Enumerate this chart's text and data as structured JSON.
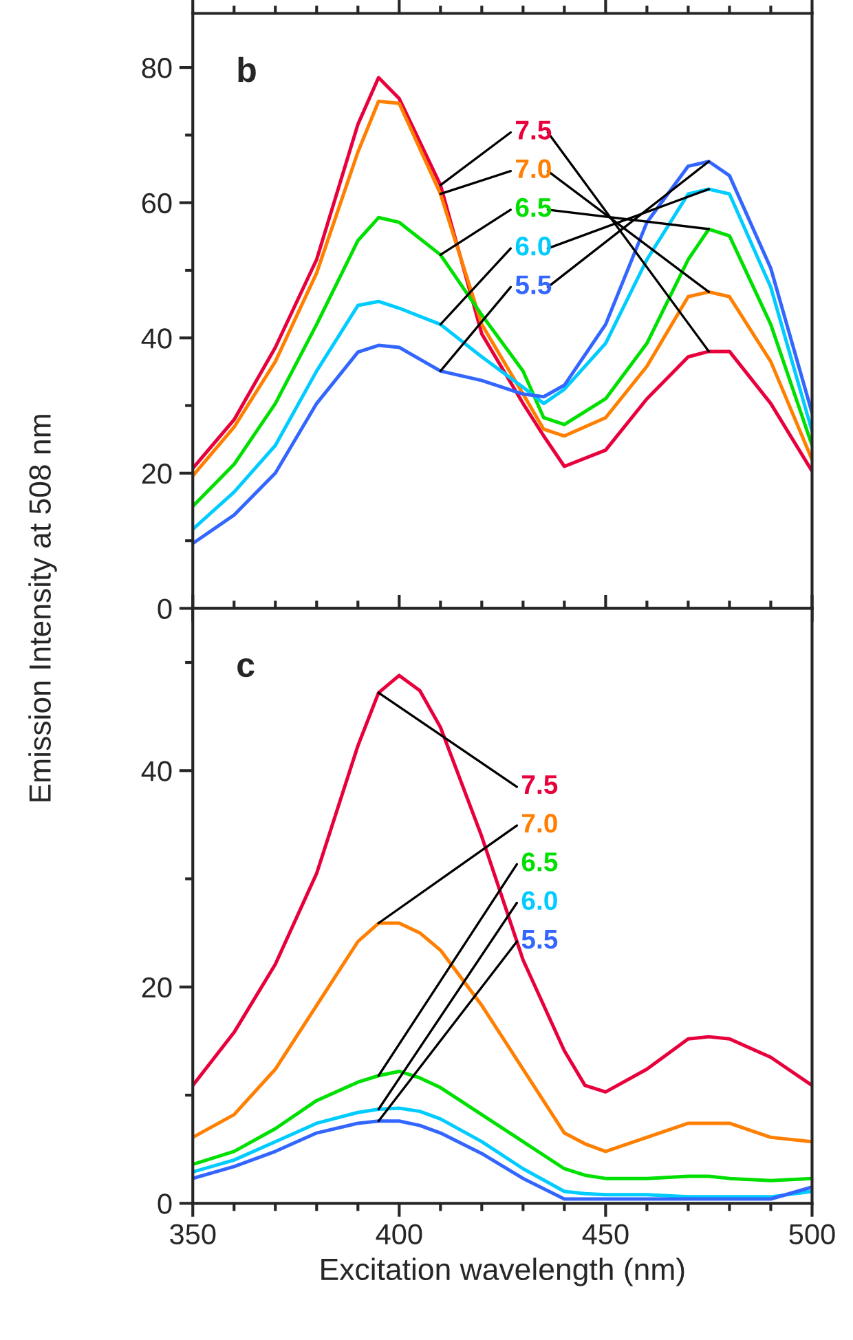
{
  "chart_data": [
    {
      "type": "line",
      "ylabel": "Emission Intensity at 508 nm",
      "annotations": [
        "b"
      ],
      "tick_labels": "y",
      "xlim": [
        350,
        500
      ],
      "xticks": [
        350,
        400,
        450,
        500
      ],
      "ylim": [
        0,
        88
      ],
      "yticks": [
        0,
        20,
        40,
        60,
        80
      ],
      "grid": false,
      "legend": false,
      "x": [
        350,
        360,
        370,
        380,
        390,
        395,
        400,
        410,
        420,
        430,
        435,
        440,
        450,
        460,
        470,
        475,
        480,
        490,
        500
      ],
      "series": [
        {
          "name": "7.5",
          "color": "#e8003c",
          "values": [
            20.7,
            27.9,
            38.6,
            51.6,
            71.6,
            78.5,
            75.4,
            62.6,
            40.6,
            30.3,
            25.5,
            21,
            23.4,
            31,
            37.2,
            38,
            38,
            30.3,
            20.3
          ]
        },
        {
          "name": "7.0",
          "color": "#ff7f00",
          "values": [
            19.6,
            26.8,
            36.5,
            49.6,
            67.5,
            75,
            74.7,
            61.3,
            42,
            31.7,
            26.5,
            25.5,
            28.2,
            35.8,
            46.1,
            46.8,
            46.1,
            36.5,
            22
          ]
        },
        {
          "name": "6.5",
          "color": "#00e000",
          "values": [
            15.1,
            21.3,
            30.3,
            42,
            54.4,
            57.8,
            57.1,
            52.3,
            43.4,
            35.1,
            28.2,
            27.2,
            31,
            39.2,
            51.6,
            56.1,
            55.1,
            42,
            24.1
          ]
        },
        {
          "name": "6.0",
          "color": "#00ccff",
          "values": [
            11.7,
            17.2,
            24.1,
            35.1,
            44.8,
            45.4,
            44.4,
            42,
            37.2,
            32.7,
            30.3,
            32.4,
            39.2,
            51.6,
            61.3,
            62,
            61.3,
            47.5,
            26.2
          ]
        },
        {
          "name": "5.5",
          "color": "#3366ff",
          "values": [
            9.6,
            13.8,
            20,
            30.3,
            37.9,
            38.9,
            38.6,
            35.1,
            33.7,
            31.7,
            31.3,
            33,
            42,
            57.1,
            65.4,
            66.1,
            64,
            50.3,
            28.9
          ]
        }
      ]
    },
    {
      "type": "line",
      "xlabel": "Excitation wavelength (nm)",
      "annotations": [
        "c"
      ],
      "xlim": [
        350,
        500
      ],
      "xticks": [
        350,
        400,
        450,
        500
      ],
      "ylim": [
        0,
        55
      ],
      "yticks": [
        0,
        20,
        40
      ],
      "grid": false,
      "legend": false,
      "x": [
        350,
        360,
        370,
        380,
        390,
        395,
        400,
        405,
        410,
        420,
        430,
        440,
        445,
        450,
        460,
        470,
        475,
        480,
        490,
        500
      ],
      "series": [
        {
          "name": "7.5",
          "color": "#e8003c",
          "values": [
            10.9,
            15.8,
            22.1,
            30.5,
            42.3,
            47.2,
            48.8,
            47.4,
            44,
            33.9,
            22.5,
            14.1,
            10.9,
            10.3,
            12.4,
            15.2,
            15.4,
            15.2,
            13.5,
            10.9
          ]
        },
        {
          "name": "7.0",
          "color": "#ff7f00",
          "values": [
            6.1,
            8.2,
            12.4,
            18.3,
            24.2,
            25.9,
            25.9,
            25,
            23.4,
            18.3,
            12.4,
            6.5,
            5.5,
            4.8,
            6.1,
            7.4,
            7.4,
            7.4,
            6.1,
            5.7
          ]
        },
        {
          "name": "6.5",
          "color": "#00e000",
          "values": [
            3.6,
            4.8,
            6.9,
            9.5,
            11.2,
            11.8,
            12.2,
            11.6,
            10.7,
            8.2,
            5.7,
            3.2,
            2.6,
            2.3,
            2.3,
            2.5,
            2.5,
            2.3,
            2.1,
            2.3
          ]
        },
        {
          "name": "6.0",
          "color": "#00ccff",
          "values": [
            2.9,
            4,
            5.7,
            7.4,
            8.4,
            8.7,
            8.8,
            8.5,
            7.8,
            5.7,
            3.2,
            1.1,
            0.9,
            0.8,
            0.8,
            0.6,
            0.6,
            0.6,
            0.6,
            1.1
          ]
        },
        {
          "name": "5.5",
          "color": "#3366ff",
          "values": [
            2.3,
            3.4,
            4.8,
            6.5,
            7.4,
            7.6,
            7.6,
            7.2,
            6.5,
            4.6,
            2.3,
            0.4,
            0.4,
            0.4,
            0.4,
            0.4,
            0.4,
            0.4,
            0.4,
            1.5
          ]
        }
      ]
    }
  ]
}
